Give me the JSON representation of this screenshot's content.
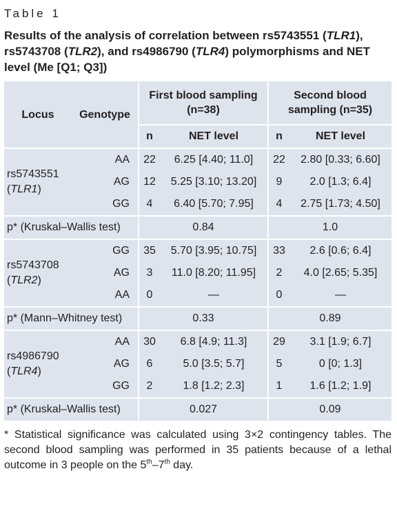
{
  "label": "Table 1",
  "title": [
    "Results of the analysis of correlation between rs5743551 (",
    "TLR1",
    "), rs5743708 (",
    "TLR2",
    "), and rs4986790 (",
    "TLR4",
    ") polymorphisms and NET level (Me [Q1; Q3])"
  ],
  "header": {
    "locus": "Locus",
    "genotype": "Genotype",
    "first": "First blood sampling (n=38)",
    "second": "Second blood sampling (n=35)",
    "sub": [
      "n",
      "NET level",
      "n",
      "NET level"
    ]
  },
  "groups": [
    {
      "locus": [
        "rs5743551",
        "(",
        "TLR1",
        ")"
      ],
      "rows": [
        [
          "AA",
          22,
          "6.25 [4.40; 11.0]",
          22,
          "2.80 [0.33; 6.60]"
        ],
        [
          "AG",
          12,
          "5.25 [3.10; 13.20]",
          9,
          "2.0 [1.3; 6.4]"
        ],
        [
          "GG",
          4,
          "6.40 [5.70; 7.95]",
          4,
          "2.75 [1.73; 4.50]"
        ]
      ],
      "p": [
        "p* (Kruskal–Wallis test)",
        "0.84",
        "1.0"
      ]
    },
    {
      "locus": [
        "rs5743708",
        "(",
        "TLR2",
        ")"
      ],
      "rows": [
        [
          "GG",
          35,
          "5.70 [3.95; 10.75]",
          33,
          "2.6 [0.6; 6.4]"
        ],
        [
          "AG",
          3,
          "11.0 [8.20; 11.95]",
          2,
          "4.0 [2.65; 5.35]"
        ],
        [
          "AA",
          0,
          "—",
          0,
          "—"
        ]
      ],
      "p": [
        "p* (Mann–Whitney test)",
        "0.33",
        "0.89"
      ]
    },
    {
      "locus": [
        "rs4986790",
        "(",
        "TLR4",
        ")"
      ],
      "rows": [
        [
          "AA",
          30,
          "6.8 [4.9; 11.3]",
          29,
          "3.1 [1.9; 6.7]"
        ],
        [
          "AG",
          6,
          "5.0 [3.5; 5.7]",
          5,
          "0 [0; 1.3]"
        ],
        [
          "GG",
          2,
          "1.8 [1.2; 2.3]",
          1,
          "1.6 [1.2; 1.9]"
        ]
      ],
      "p": [
        "p* (Kruskal–Wallis test)",
        "0.027",
        "0.09"
      ]
    }
  ],
  "footnote": [
    "* Statistical significance was calculated using 3×2 contingency tables. The second blood sampling was performed in 35 patients because of a lethal outcome in 3 people on the 5",
    "th",
    "–7",
    "th",
    " day."
  ]
}
